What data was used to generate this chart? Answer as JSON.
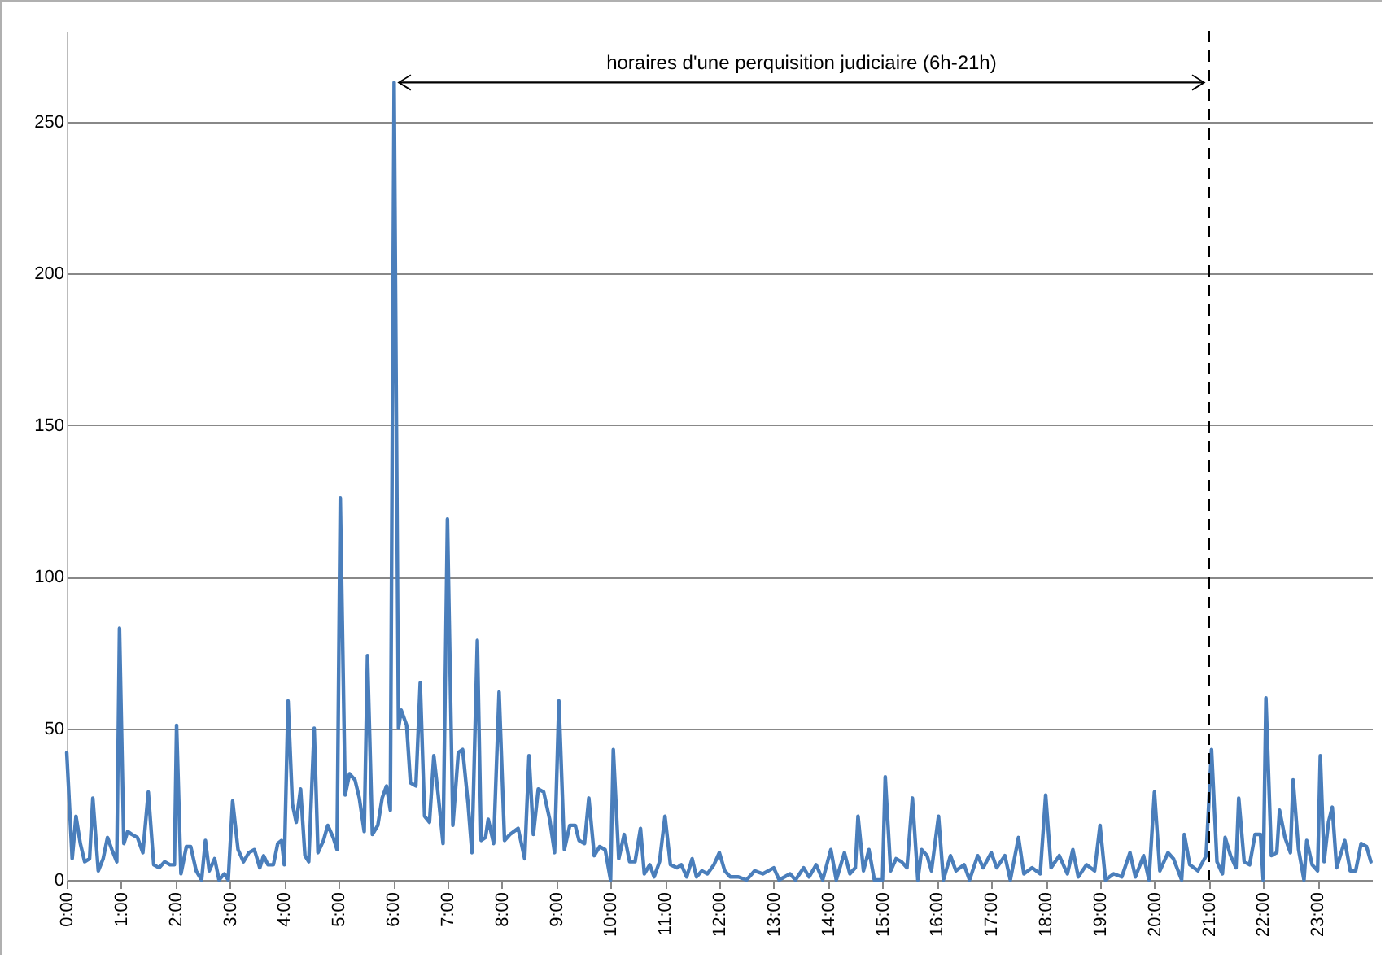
{
  "chart_data": {
    "type": "line",
    "x": [
      0,
      0.1,
      0.17,
      0.25,
      0.33,
      0.42,
      0.48,
      0.58,
      0.67,
      0.75,
      0.83,
      0.92,
      0.97,
      1.05,
      1.12,
      1.2,
      1.3,
      1.4,
      1.5,
      1.6,
      1.7,
      1.8,
      1.9,
      1.98,
      2.02,
      2.1,
      2.2,
      2.28,
      2.38,
      2.48,
      2.55,
      2.62,
      2.72,
      2.8,
      2.9,
      2.97,
      3.05,
      3.15,
      3.25,
      3.35,
      3.45,
      3.55,
      3.62,
      3.7,
      3.8,
      3.88,
      3.95,
      4.0,
      4.07,
      4.15,
      4.22,
      4.3,
      4.38,
      4.45,
      4.55,
      4.62,
      4.72,
      4.8,
      4.9,
      4.97,
      5.03,
      5.12,
      5.2,
      5.3,
      5.38,
      5.47,
      5.53,
      5.62,
      5.72,
      5.8,
      5.88,
      5.95,
      6.02,
      6.1,
      6.15,
      6.25,
      6.32,
      6.42,
      6.5,
      6.58,
      6.67,
      6.75,
      6.83,
      6.92,
      7.0,
      7.1,
      7.2,
      7.28,
      7.38,
      7.45,
      7.55,
      7.62,
      7.7,
      7.75,
      7.85,
      7.95,
      8.05,
      8.15,
      8.3,
      8.42,
      8.5,
      8.58,
      8.67,
      8.77,
      8.88,
      8.97,
      9.05,
      9.15,
      9.25,
      9.35,
      9.42,
      9.52,
      9.6,
      9.7,
      9.8,
      9.9,
      10.0,
      10.05,
      10.15,
      10.25,
      10.35,
      10.45,
      10.55,
      10.62,
      10.72,
      10.8,
      10.9,
      11.0,
      11.1,
      11.22,
      11.3,
      11.4,
      11.5,
      11.58,
      11.68,
      11.78,
      11.9,
      12.0,
      12.1,
      12.2,
      12.35,
      12.5,
      12.65,
      12.8,
      13.0,
      13.1,
      13.3,
      13.4,
      13.55,
      13.65,
      13.78,
      13.9,
      14.05,
      14.15,
      14.3,
      14.4,
      14.5,
      14.55,
      14.65,
      14.75,
      14.85,
      15.0,
      15.05,
      15.15,
      15.25,
      15.35,
      15.45,
      15.55,
      15.65,
      15.72,
      15.82,
      15.9,
      16.03,
      16.12,
      16.25,
      16.35,
      16.5,
      16.6,
      16.75,
      16.85,
      17.0,
      17.1,
      17.25,
      17.35,
      17.5,
      17.6,
      17.75,
      17.9,
      18.0,
      18.1,
      18.25,
      18.4,
      18.5,
      18.6,
      18.75,
      18.9,
      19.0,
      19.1,
      19.25,
      19.4,
      19.55,
      19.65,
      19.8,
      19.9,
      20.0,
      20.1,
      20.25,
      20.35,
      20.5,
      20.55,
      20.65,
      20.8,
      20.95,
      21.05,
      21.15,
      21.25,
      21.3,
      21.4,
      21.5,
      21.55,
      21.65,
      21.75,
      21.85,
      21.95,
      22.0,
      22.05,
      22.15,
      22.25,
      22.3,
      22.4,
      22.5,
      22.55,
      22.65,
      22.75,
      22.8,
      22.9,
      23.0,
      23.05,
      23.12,
      23.2,
      23.27,
      23.35,
      23.5,
      23.6,
      23.7,
      23.8,
      23.9,
      23.98
    ],
    "series": [
      {
        "color": "#4a7ebb",
        "values": [
          42,
          7,
          21,
          12,
          6,
          7,
          27,
          3,
          7,
          14,
          10,
          6,
          83,
          12,
          16,
          15,
          14,
          9,
          29,
          5,
          4,
          6,
          5,
          5,
          51,
          2,
          11,
          11,
          3,
          0,
          13,
          3,
          7,
          0,
          2,
          0,
          26,
          10,
          6,
          9,
          10,
          4,
          8,
          5,
          5,
          12,
          13,
          5,
          59,
          25,
          19,
          30,
          8,
          6,
          50,
          9,
          13,
          18,
          14,
          10,
          126,
          28,
          35,
          33,
          27,
          16,
          74,
          15,
          18,
          27,
          31,
          23,
          263,
          50,
          56,
          51,
          32,
          31,
          65,
          21,
          19,
          41,
          28,
          12,
          119,
          18,
          42,
          43,
          25,
          9,
          79,
          13,
          14,
          20,
          12,
          62,
          13,
          15,
          17,
          7,
          41,
          15,
          30,
          29,
          20,
          9,
          59,
          10,
          18,
          18,
          13,
          12,
          27,
          8,
          11,
          10,
          0,
          43,
          7,
          15,
          6,
          6,
          17,
          2,
          5,
          1,
          6,
          21,
          5,
          4,
          5,
          1,
          7,
          1,
          3,
          2,
          5,
          9,
          3,
          1,
          1,
          0,
          3,
          2,
          4,
          0,
          2,
          0,
          4,
          1,
          5,
          0,
          10,
          0,
          9,
          2,
          4,
          21,
          3,
          10,
          0,
          0,
          34,
          3,
          7,
          6,
          4,
          27,
          0,
          10,
          8,
          3,
          21,
          0,
          8,
          3,
          5,
          0,
          8,
          4,
          9,
          4,
          8,
          0,
          14,
          2,
          4,
          2,
          28,
          4,
          8,
          2,
          10,
          1,
          5,
          3,
          18,
          0,
          2,
          1,
          9,
          1,
          8,
          0,
          29,
          3,
          9,
          7,
          0,
          15,
          5,
          3,
          8,
          43,
          6,
          2,
          14,
          8,
          4,
          27,
          6,
          5,
          15,
          15,
          0,
          60,
          8,
          9,
          23,
          14,
          9,
          33,
          10,
          0,
          13,
          5,
          3,
          41,
          6,
          19,
          24,
          4,
          13,
          3,
          3,
          12,
          11,
          6
        ]
      }
    ],
    "xlim": [
      0,
      24
    ],
    "xticks": [
      {
        "value": 0,
        "label": "0:00"
      },
      {
        "value": 1,
        "label": "1:00"
      },
      {
        "value": 2,
        "label": "2:00"
      },
      {
        "value": 3,
        "label": "3:00"
      },
      {
        "value": 4,
        "label": "4:00"
      },
      {
        "value": 5,
        "label": "5:00"
      },
      {
        "value": 6,
        "label": "6:00"
      },
      {
        "value": 7,
        "label": "7:00"
      },
      {
        "value": 8,
        "label": "8:00"
      },
      {
        "value": 9,
        "label": "9:00"
      },
      {
        "value": 10,
        "label": "10:00"
      },
      {
        "value": 11,
        "label": "11:00"
      },
      {
        "value": 12,
        "label": "12:00"
      },
      {
        "value": 13,
        "label": "13:00"
      },
      {
        "value": 14,
        "label": "14:00"
      },
      {
        "value": 15,
        "label": "15:00"
      },
      {
        "value": 16,
        "label": "16:00"
      },
      {
        "value": 17,
        "label": "17:00"
      },
      {
        "value": 18,
        "label": "18:00"
      },
      {
        "value": 19,
        "label": "19:00"
      },
      {
        "value": 20,
        "label": "20:00"
      },
      {
        "value": 21,
        "label": "21:00"
      },
      {
        "value": 22,
        "label": "22:00"
      },
      {
        "value": 23,
        "label": "23:00"
      }
    ],
    "ylim": [
      0,
      280
    ],
    "yticks": [
      0,
      50,
      100,
      150,
      200,
      250
    ],
    "grid": "y",
    "marker": "none",
    "line_style": "solid",
    "ref_lines": [
      {
        "axis": "x",
        "value": 21,
        "line_style": "dashed",
        "color": "#000000"
      }
    ],
    "annotations": [
      "horaires d'une perquisition judiciaire (6h-21h)"
    ]
  }
}
